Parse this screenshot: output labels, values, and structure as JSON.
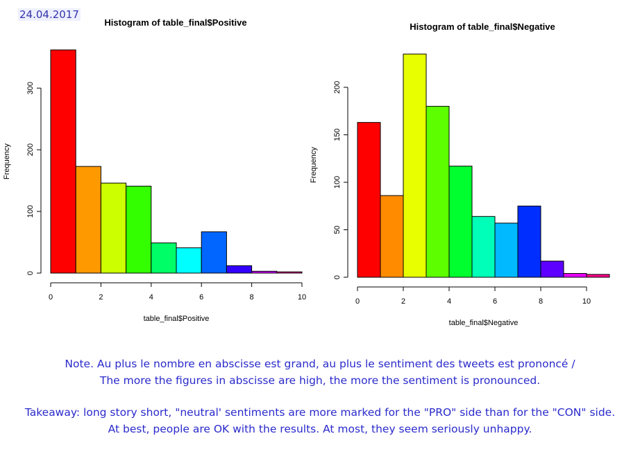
{
  "date": "24.04.2017",
  "chart_data": [
    {
      "type": "bar",
      "title": "Histogram of table_final$Positive",
      "xlabel": "table_final$Positive",
      "ylabel": "Frequency",
      "bins": [
        [
          0,
          1
        ],
        [
          1,
          2
        ],
        [
          2,
          3
        ],
        [
          3,
          4
        ],
        [
          4,
          5
        ],
        [
          5,
          6
        ],
        [
          6,
          7
        ],
        [
          7,
          8
        ],
        [
          8,
          9
        ],
        [
          9,
          10
        ]
      ],
      "values": [
        362,
        173,
        146,
        141,
        49,
        41,
        67,
        12,
        3,
        2
      ],
      "colors": [
        "#FF0000",
        "#FF9900",
        "#CCFF00",
        "#33FF00",
        "#00FF66",
        "#00FFFF",
        "#0066FF",
        "#3300FF",
        "#CC00FF",
        "#FF0099"
      ],
      "xlim": [
        0,
        10
      ],
      "ylim": [
        0,
        362
      ],
      "xticks": [
        0,
        2,
        4,
        6,
        8,
        10
      ],
      "yticks": [
        0,
        100,
        200,
        300
      ],
      "grid": false
    },
    {
      "type": "bar",
      "title": "Histogram of table_final$Negative",
      "xlabel": "table_final$Negative",
      "ylabel": "Frequency",
      "bins": [
        [
          0,
          1
        ],
        [
          1,
          2
        ],
        [
          2,
          3
        ],
        [
          3,
          4
        ],
        [
          4,
          5
        ],
        [
          5,
          6
        ],
        [
          6,
          7
        ],
        [
          7,
          8
        ],
        [
          8,
          9
        ],
        [
          9,
          10
        ],
        [
          10,
          11
        ]
      ],
      "values": [
        163,
        86,
        235,
        180,
        117,
        64,
        57,
        75,
        17,
        4,
        3
      ],
      "colors": [
        "#FF0000",
        "#FF8B00",
        "#E8FF00",
        "#5DFF00",
        "#00FF2E",
        "#00FFB9",
        "#00B9FF",
        "#002EFF",
        "#5D00FF",
        "#E800FF",
        "#FF008B"
      ],
      "xlim": [
        0,
        11
      ],
      "ylim": [
        0,
        235
      ],
      "xticks": [
        0,
        2,
        4,
        6,
        8,
        10
      ],
      "yticks": [
        0,
        50,
        100,
        150,
        200
      ],
      "grid": false
    }
  ],
  "notes": {
    "line1": "Note. Au plus le nombre en abscisse est grand, au plus le sentiment des tweets est prononcé /",
    "line2": "The more the figures in abscisse are high, the more the sentiment is pronounced.",
    "line3": "Takeaway: long story short, \"neutral' sentiments are more marked for the \"PRO\" side than for the \"CON\" side.",
    "line4": "At best, people are OK with the results. At most, they seem seriously unhappy."
  }
}
